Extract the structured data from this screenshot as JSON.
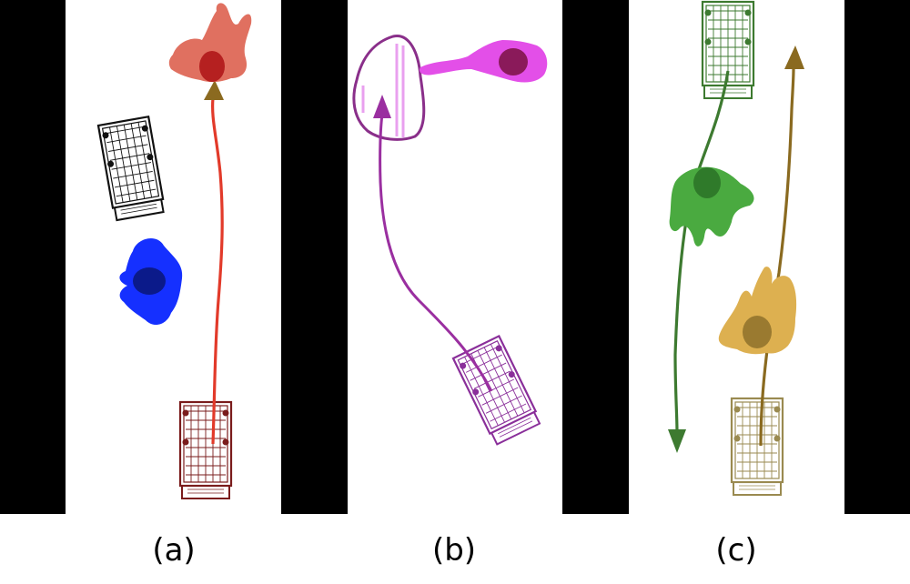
{
  "panels": [
    {
      "label": "(a)"
    },
    {
      "label": "(b)"
    },
    {
      "label": "(c)"
    }
  ],
  "colors": {
    "aisle_wall": "#000000",
    "background": "#ffffff",
    "panel_a": {
      "person_target": "#e07060",
      "person_target_head": "#b52020",
      "path": "#e23a2a",
      "arrow_head": "#8b6a20",
      "cart_parked": "#111111",
      "cart_moving": "#7a1c1c",
      "person_obstacle": "#1530ff",
      "person_obstacle_head": "#0b1a8a"
    },
    "panel_b": {
      "path": "#9a2fa0",
      "cart": "#8a2f9a",
      "zone_outline": "#8a2f8a",
      "zone_stripes": "#e9a0ef",
      "person": "#e34fe8",
      "person_head": "#8a1a5a"
    },
    "panel_c": {
      "green": "#3d7a30",
      "green_body": "#4aaa40",
      "green_head": "#2f7a2a",
      "gold": "#8a6a20",
      "gold_body": "#ddb050",
      "gold_head": "#9a7a30",
      "cart_gold": "#9a8a50"
    }
  },
  "icons": [
    "shopping-cart-icon",
    "person-top-view-icon",
    "trajectory-arrow-icon"
  ]
}
